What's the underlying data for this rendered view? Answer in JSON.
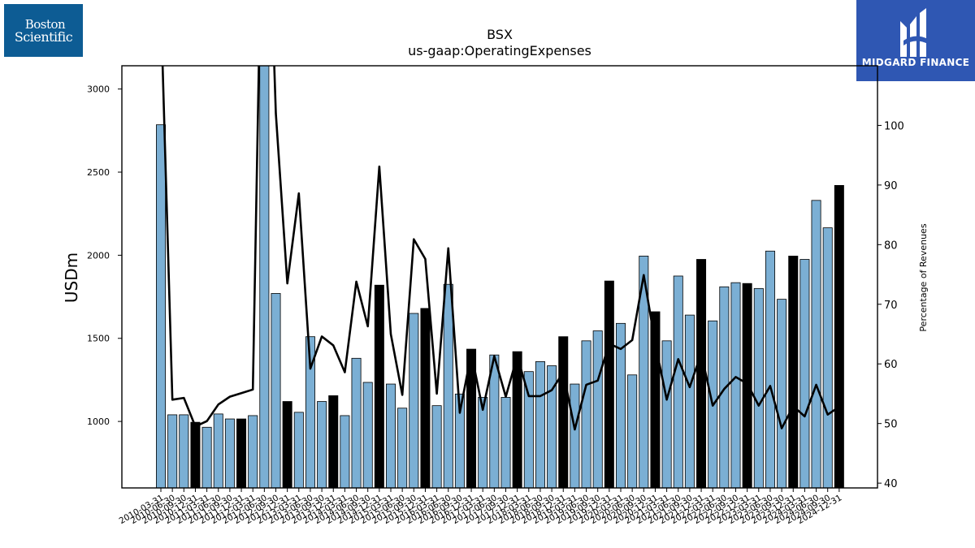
{
  "logos": {
    "left_line1": "Boston",
    "left_line2": "Scientific",
    "right_brand": "MIDGARD FINANCE"
  },
  "colors": {
    "bar_default": "#7bafd4",
    "bar_highlight": "#000000",
    "line": "#000000"
  },
  "chart_data": {
    "type": "bar",
    "title": "BSX",
    "subtitle": "us-gaap:OperatingExpenses",
    "ylabel": "USDm",
    "y2label": "Percentage of Revenues",
    "ylim": [
      600,
      3140
    ],
    "y2lim": [
      39.2,
      110
    ],
    "yticks": [
      1000,
      1500,
      2000,
      2500,
      3000
    ],
    "y2ticks": [
      40,
      50,
      60,
      70,
      80,
      90,
      100
    ],
    "categories": [
      "2010-03-31",
      "2010-06-30",
      "2010-09-30",
      "2010-12-31",
      "2011-03-31",
      "2011-06-30",
      "2011-09-30",
      "2011-12-31",
      "2012-03-31",
      "2012-06-30",
      "2012-09-30",
      "2012-12-31",
      "2013-03-31",
      "2013-06-30",
      "2013-09-30",
      "2013-12-31",
      "2014-03-31",
      "2014-06-30",
      "2014-09-30",
      "2014-12-31",
      "2015-03-31",
      "2015-06-30",
      "2015-09-30",
      "2015-12-31",
      "2016-03-31",
      "2016-06-30",
      "2016-09-30",
      "2016-12-31",
      "2017-03-31",
      "2017-06-30",
      "2017-09-30",
      "2017-12-31",
      "2018-03-31",
      "2018-06-30",
      "2018-09-30",
      "2018-12-31",
      "2019-03-31",
      "2019-06-30",
      "2019-09-30",
      "2019-12-31",
      "2020-03-31",
      "2020-06-30",
      "2020-09-30",
      "2020-12-31",
      "2021-03-31",
      "2021-06-30",
      "2021-09-30",
      "2021-12-31",
      "2022-03-31",
      "2022-06-30",
      "2022-09-30",
      "2022-12-31",
      "2023-03-31",
      "2023-06-30",
      "2023-09-30",
      "2023-12-31",
      "2024-03-31",
      "2024-06-30",
      "2024-09-30",
      "2024-12-31"
    ],
    "xtick_labels": [
      "2010-03-31",
      "2010-06-30",
      "2010-09-30",
      "2010-12-31",
      "2011-03-31",
      "2011-06-30",
      "2011-09-30",
      "2011-12-31",
      "2012-03-31",
      "2012-06-30",
      "2012-09-30",
      "2012-12-31",
      "2013-03-31",
      "2013-06-30",
      "2013-09-30",
      "2013-12-31",
      "2014-03-31",
      "2014-06-30",
      "2014-09-30",
      "2014-12-31",
      "2015-03-31",
      "2015-06-30",
      "2015-09-30",
      "2015-12-31",
      "2016-03-31",
      "2016-06-30",
      "2016-09-30",
      "2016-12-31",
      "2017-03-31",
      "2017-06-30",
      "2017-09-30",
      "2017-12-31",
      "2018-03-31",
      "2018-06-30",
      "2018-09-30",
      "2018-12-31",
      "2019-03-31",
      "2019-06-30",
      "2019-09-30",
      "2019-12-31",
      "2020-03-31",
      "2020-06-30",
      "2020-09-30",
      "2020-12-31",
      "2021-03-31",
      "2021-06-30",
      "2021-09-30",
      "2021-12-31",
      "2022-03-31",
      "2022-06-30",
      "2022-09-30",
      "2022-12-31",
      "2023-03-31",
      "2023-06-30",
      "2023-09-30",
      "2023-12-31",
      "2024-03-31",
      "2024-06-30",
      "2024-09-30",
      "2024-12-31"
    ],
    "series": [
      {
        "type": "bar",
        "axis": "left",
        "values": [
          2785,
          1040,
          1040,
          995,
          965,
          1045,
          1015,
          1015,
          1035,
          3200,
          1770,
          1120,
          1055,
          1510,
          1120,
          1155,
          1035,
          1380,
          1235,
          1820,
          1225,
          1080,
          1650,
          1680,
          1095,
          1825,
          1165,
          1435,
          1145,
          1400,
          1145,
          1420,
          1300,
          1360,
          1335,
          1510,
          1225,
          1485,
          1545,
          1845,
          1590,
          1280,
          1995,
          1660,
          1485,
          1875,
          1640,
          1975,
          1605,
          1810,
          1835,
          1830,
          1800,
          2025,
          1735,
          1995,
          1975,
          2330,
          2165,
          2420
        ],
        "highlight": [
          false,
          false,
          false,
          true,
          false,
          false,
          false,
          true,
          false,
          false,
          false,
          true,
          false,
          false,
          false,
          true,
          false,
          false,
          false,
          true,
          false,
          false,
          false,
          true,
          false,
          false,
          false,
          true,
          false,
          false,
          false,
          true,
          false,
          false,
          false,
          true,
          false,
          false,
          false,
          true,
          false,
          false,
          false,
          true,
          false,
          false,
          false,
          true,
          false,
          false,
          false,
          true,
          false,
          false,
          false,
          true,
          false,
          false,
          false,
          true
        ]
      },
      {
        "type": "line",
        "axis": "right",
        "values": [
          120,
          54,
          54.3,
          49.5,
          50.4,
          53.2,
          54.5,
          55.1,
          55.7,
          160,
          102,
          73.5,
          88.6,
          59.2,
          64.6,
          63.1,
          58.6,
          73.8,
          66.3,
          93.1,
          65,
          54.8,
          80.9,
          77.6,
          55,
          79.4,
          51.8,
          61.8,
          52.3,
          61.3,
          54.5,
          61.3,
          54.6,
          54.6,
          55.6,
          58.6,
          49,
          56.5,
          57.2,
          63.4,
          62.5,
          64,
          74.9,
          63.4,
          54,
          60.8,
          56.1,
          61.8,
          53,
          55.8,
          57.8,
          56.7,
          53,
          56.3,
          49.2,
          52.9,
          51.2,
          56.5,
          51.5,
          52.8
        ]
      }
    ]
  }
}
